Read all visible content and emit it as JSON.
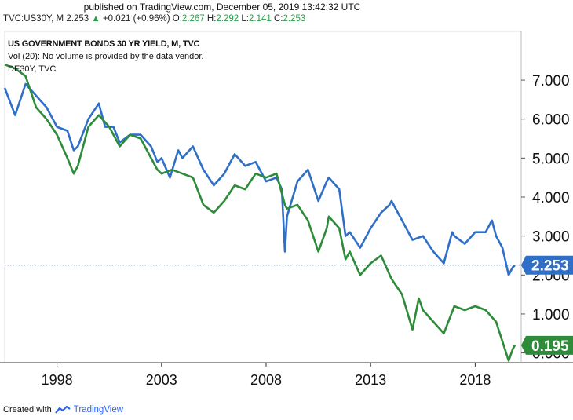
{
  "published": "published on TradingView.com, December 05, 2019 13:42:32 UTC",
  "header": {
    "symbol": "TVC:US30Y, M",
    "last": "2.253",
    "arrow": "▲",
    "change": "+0.021 (+0.96%)",
    "o_label": "O:",
    "o": "2.267",
    "h_label": "H:",
    "h": "2.292",
    "l_label": "L:",
    "l": "2.141",
    "c_label": "C:",
    "c": "2.253"
  },
  "overlay": {
    "title": "US GOVERNMENT BONDS 30 YR YIELD, M, TVC",
    "volume_note": "Vol (20): No volume is provided by the data vendor.",
    "compare_symbol": "DE30Y, TVC"
  },
  "footer": {
    "created_with": "Created with",
    "brand": "TradingView"
  },
  "colors": {
    "us": "#2f6fc7",
    "de": "#2e8b3a",
    "grid_line": "#2f6fc7"
  },
  "chart_data": {
    "type": "line",
    "title": "US GOVERNMENT BONDS 30 YR YIELD, M, TVC",
    "xlim": [
      1995.5,
      2020.2
    ],
    "ylim": [
      -0.25,
      8.25
    ],
    "xticks": [
      1998,
      2003,
      2008,
      2013,
      2018
    ],
    "xtick_labels": [
      "1998",
      "2003",
      "2008",
      "2013",
      "2018"
    ],
    "yticks": [
      0,
      1,
      2,
      3,
      4,
      5,
      6,
      7
    ],
    "ytick_labels": [
      "0.000",
      "1.000",
      "2.000",
      "3.000",
      "4.000",
      "5.000",
      "6.000",
      "7.000"
    ],
    "hidden_ytick_labels": [
      "0.000",
      "2.000"
    ],
    "last_labels": [
      {
        "series": "US30Y",
        "value": 2.253,
        "label": "2.253"
      },
      {
        "series": "DE30Y",
        "value": 0.195,
        "label": "0.195"
      }
    ],
    "series": [
      {
        "name": "US30Y",
        "color": "#2f6fc7",
        "x": [
          1995.5,
          1996.0,
          1996.5,
          1997.0,
          1997.5,
          1998.0,
          1998.5,
          1998.8,
          1999.0,
          1999.5,
          2000.0,
          2000.3,
          2000.7,
          2001.0,
          2001.5,
          2002.0,
          2002.5,
          2002.8,
          2003.0,
          2003.4,
          2003.8,
          2004.0,
          2004.5,
          2005.0,
          2005.5,
          2006.0,
          2006.5,
          2007.0,
          2007.5,
          2008.0,
          2008.5,
          2008.75,
          2008.9,
          2009.0,
          2009.5,
          2010.0,
          2010.5,
          2010.9,
          2011.0,
          2011.5,
          2011.8,
          2012.0,
          2012.5,
          2013.0,
          2013.5,
          2013.9,
          2014.0,
          2014.5,
          2015.0,
          2015.5,
          2016.0,
          2016.5,
          2016.9,
          2017.0,
          2017.5,
          2018.0,
          2018.5,
          2018.8,
          2019.0,
          2019.3,
          2019.6,
          2019.8,
          2019.9
        ],
        "values": [
          6.8,
          6.1,
          6.9,
          6.6,
          6.3,
          5.8,
          5.7,
          5.2,
          5.3,
          6.0,
          6.4,
          5.8,
          5.8,
          5.4,
          5.6,
          5.6,
          5.3,
          4.9,
          5.0,
          4.5,
          5.2,
          5.0,
          5.3,
          4.7,
          4.3,
          4.6,
          5.1,
          4.8,
          4.9,
          4.4,
          4.5,
          4.2,
          2.6,
          3.5,
          4.4,
          4.7,
          3.9,
          4.4,
          4.5,
          4.2,
          3.0,
          3.1,
          2.7,
          3.2,
          3.6,
          3.8,
          3.9,
          3.4,
          2.9,
          3.0,
          2.6,
          2.3,
          3.1,
          3.0,
          2.8,
          3.1,
          3.1,
          3.4,
          3.0,
          2.7,
          2.0,
          2.2,
          2.25
        ]
      },
      {
        "name": "DE30Y",
        "color": "#2e8b3a",
        "x": [
          1995.5,
          1996.0,
          1996.5,
          1997.0,
          1997.5,
          1998.0,
          1998.5,
          1998.8,
          1999.0,
          1999.5,
          2000.0,
          2000.5,
          2001.0,
          2001.5,
          2002.0,
          2002.5,
          2002.8,
          2003.0,
          2003.5,
          2004.0,
          2004.5,
          2005.0,
          2005.5,
          2006.0,
          2006.5,
          2007.0,
          2007.5,
          2008.0,
          2008.5,
          2008.9,
          2009.0,
          2009.5,
          2010.0,
          2010.5,
          2010.9,
          2011.0,
          2011.5,
          2011.8,
          2012.0,
          2012.5,
          2013.0,
          2013.5,
          2014.0,
          2014.5,
          2015.0,
          2015.3,
          2015.5,
          2016.0,
          2016.5,
          2017.0,
          2017.5,
          2018.0,
          2018.5,
          2019.0,
          2019.3,
          2019.6,
          2019.8,
          2019.9
        ],
        "values": [
          7.4,
          7.3,
          7.1,
          6.3,
          6.0,
          5.6,
          5.0,
          4.6,
          4.8,
          5.8,
          6.1,
          5.8,
          5.3,
          5.6,
          5.5,
          5.0,
          4.7,
          4.6,
          4.7,
          4.6,
          4.5,
          3.8,
          3.6,
          3.9,
          4.3,
          4.2,
          4.6,
          4.5,
          4.6,
          3.8,
          3.7,
          3.8,
          3.4,
          2.6,
          3.2,
          3.5,
          3.2,
          2.4,
          2.6,
          2.0,
          2.3,
          2.5,
          1.9,
          1.5,
          0.6,
          1.4,
          1.1,
          0.8,
          0.5,
          1.2,
          1.1,
          1.2,
          1.1,
          0.8,
          0.3,
          -0.2,
          0.1,
          0.2
        ]
      }
    ]
  }
}
